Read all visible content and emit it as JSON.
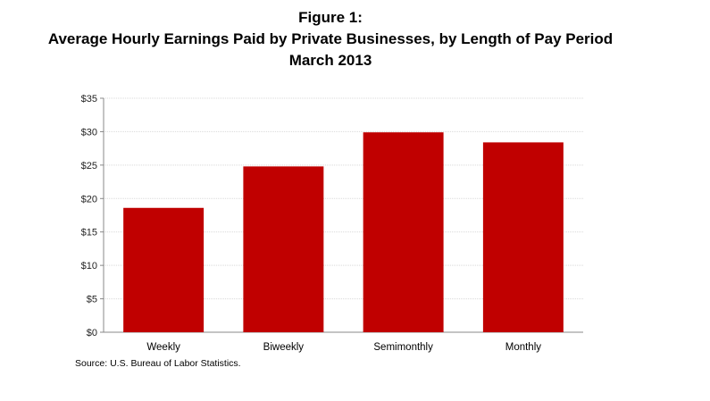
{
  "figure": {
    "label": "Figure 1:",
    "title": "Average Hourly Earnings Paid by Private Businesses, by Length of Pay Period",
    "subtitle": "March 2013",
    "source": "Source: U.S. Bureau of Labor Statistics."
  },
  "chart_data": {
    "type": "bar",
    "title": "Average Hourly Earnings Paid by Private Businesses, by Length of Pay Period",
    "subtitle": "March 2013",
    "categories": [
      "Weekly",
      "Biweekly",
      "Semimonthly",
      "Monthly"
    ],
    "values": [
      18.6,
      24.8,
      29.9,
      28.4
    ],
    "ylim": [
      0,
      35
    ],
    "yticks": [
      0,
      5,
      10,
      15,
      20,
      25,
      30,
      35
    ],
    "ytick_labels": [
      "$0",
      "$5",
      "$10",
      "$15",
      "$20",
      "$25",
      "$30",
      "$35"
    ],
    "xlabel": "",
    "ylabel": "",
    "grid": true,
    "legend": "none",
    "bar_color": "#c00000",
    "grid_color": "#d9d9d9"
  }
}
